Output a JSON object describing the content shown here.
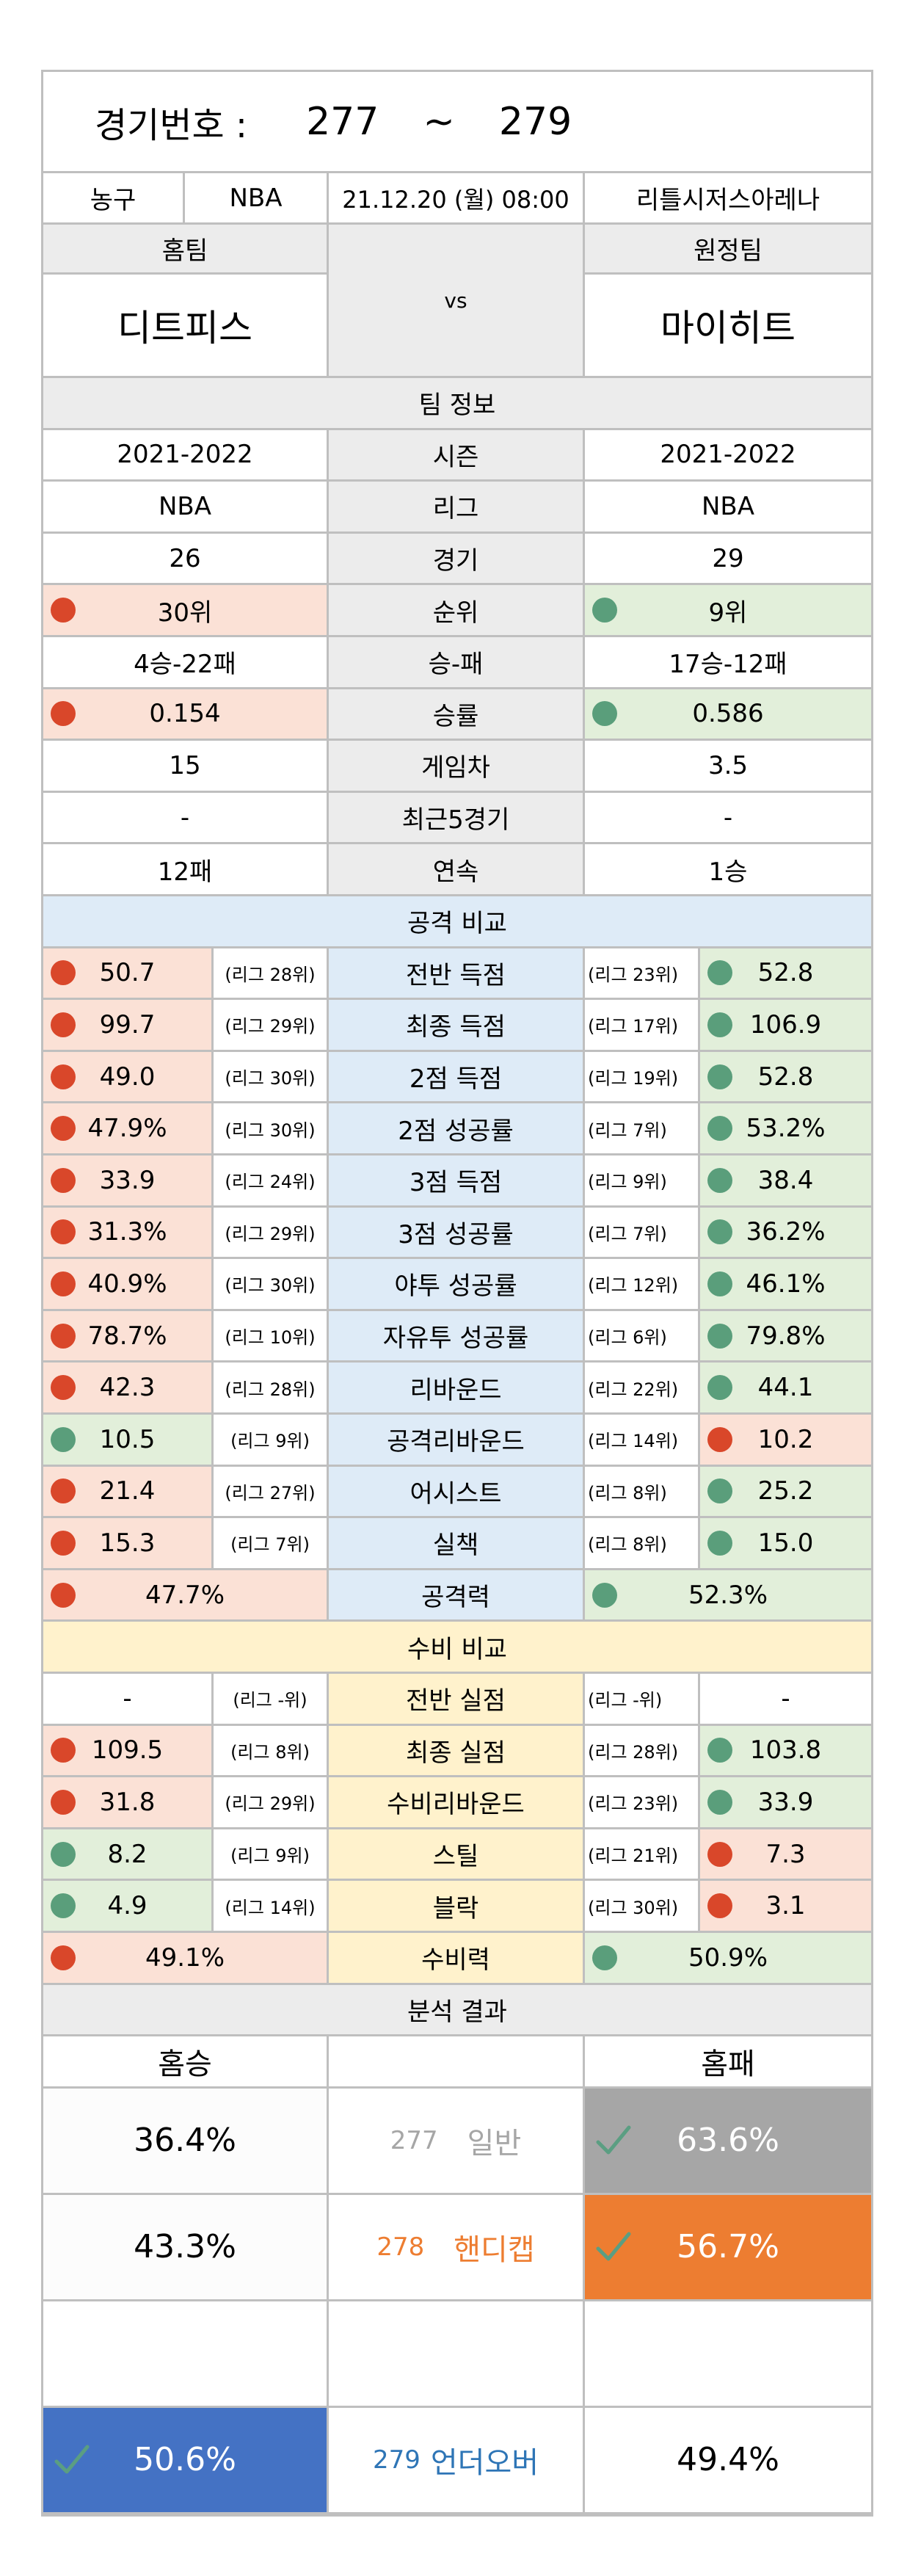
{
  "header": {
    "game_label": "경기번호 :",
    "game_from": "277",
    "tilde": "~",
    "game_to": "279"
  },
  "match": {
    "sport": "농구",
    "league": "NBA",
    "datetime": "21.12.20 (월) 08:00",
    "venue": "리틀시저스아레나"
  },
  "teams": {
    "home_label": "홈팀",
    "away_label": "원정팀",
    "vs": "vs",
    "home": "디트피스",
    "away": "마이히트"
  },
  "team_info": {
    "title": "팀 정보",
    "rows": [
      {
        "label": "시즌",
        "home": "2021-2022",
        "away": "2021-2022"
      },
      {
        "label": "리그",
        "home": "NBA",
        "away": "NBA"
      },
      {
        "label": "경기",
        "home": "26",
        "away": "29"
      },
      {
        "label": "순위",
        "home": "30위",
        "away": "9위",
        "home_mark": "red",
        "away_mark": "green"
      },
      {
        "label": "승-패",
        "home": "4승-22패",
        "away": "17승-12패"
      },
      {
        "label": "승률",
        "home": "0.154",
        "away": "0.586",
        "home_mark": "red",
        "away_mark": "green"
      },
      {
        "label": "게임차",
        "home": "15",
        "away": "3.5"
      },
      {
        "label": "최근5경기",
        "home": "-",
        "away": "-"
      },
      {
        "label": "연속",
        "home": "12패",
        "away": "1승"
      }
    ]
  },
  "attack": {
    "title": "공격 비교",
    "rows": [
      {
        "label": "전반 득점",
        "home": "50.7",
        "home_rank": "(리그 28위)",
        "home_mark": "red",
        "away": "52.8",
        "away_rank": "(리그 23위)",
        "away_mark": "green"
      },
      {
        "label": "최종 득점",
        "home": "99.7",
        "home_rank": "(리그 29위)",
        "home_mark": "red",
        "away": "106.9",
        "away_rank": "(리그 17위)",
        "away_mark": "green"
      },
      {
        "label": "2점 득점",
        "home": "49.0",
        "home_rank": "(리그 30위)",
        "home_mark": "red",
        "away": "52.8",
        "away_rank": "(리그 19위)",
        "away_mark": "green"
      },
      {
        "label": "2점 성공률",
        "home": "47.9%",
        "home_rank": "(리그 30위)",
        "home_mark": "red",
        "away": "53.2%",
        "away_rank": "(리그 7위)",
        "away_mark": "green"
      },
      {
        "label": "3점 득점",
        "home": "33.9",
        "home_rank": "(리그 24위)",
        "home_mark": "red",
        "away": "38.4",
        "away_rank": "(리그 9위)",
        "away_mark": "green"
      },
      {
        "label": "3점 성공률",
        "home": "31.3%",
        "home_rank": "(리그 29위)",
        "home_mark": "red",
        "away": "36.2%",
        "away_rank": "(리그 7위)",
        "away_mark": "green"
      },
      {
        "label": "야투 성공률",
        "home": "40.9%",
        "home_rank": "(리그 30위)",
        "home_mark": "red",
        "away": "46.1%",
        "away_rank": "(리그 12위)",
        "away_mark": "green"
      },
      {
        "label": "자유투 성공률",
        "home": "78.7%",
        "home_rank": "(리그 10위)",
        "home_mark": "red",
        "away": "79.8%",
        "away_rank": "(리그 6위)",
        "away_mark": "green"
      },
      {
        "label": "리바운드",
        "home": "42.3",
        "home_rank": "(리그 28위)",
        "home_mark": "red",
        "away": "44.1",
        "away_rank": "(리그 22위)",
        "away_mark": "green"
      },
      {
        "label": "공격리바운드",
        "home": "10.5",
        "home_rank": "(리그 9위)",
        "home_mark": "green",
        "away": "10.2",
        "away_rank": "(리그 14위)",
        "away_mark": "red"
      },
      {
        "label": "어시스트",
        "home": "21.4",
        "home_rank": "(리그 27위)",
        "home_mark": "red",
        "away": "25.2",
        "away_rank": "(리그 8위)",
        "away_mark": "green"
      },
      {
        "label": "실책",
        "home": "15.3",
        "home_rank": "(리그 7위)",
        "home_mark": "red",
        "away": "15.0",
        "away_rank": "(리그 8위)",
        "away_mark": "green"
      }
    ],
    "summary": {
      "label": "공격력",
      "home": "47.7%",
      "home_mark": "red",
      "away": "52.3%",
      "away_mark": "green"
    }
  },
  "defense": {
    "title": "수비 비교",
    "rows": [
      {
        "label": "전반 실점",
        "home": "-",
        "home_rank": "(리그 -위)",
        "home_mark": "none",
        "away": "-",
        "away_rank": "(리그 -위)",
        "away_mark": "none"
      },
      {
        "label": "최종 실점",
        "home": "109.5",
        "home_rank": "(리그 8위)",
        "home_mark": "red",
        "away": "103.8",
        "away_rank": "(리그 28위)",
        "away_mark": "green"
      },
      {
        "label": "수비리바운드",
        "home": "31.8",
        "home_rank": "(리그 29위)",
        "home_mark": "red",
        "away": "33.9",
        "away_rank": "(리그 23위)",
        "away_mark": "green"
      },
      {
        "label": "스틸",
        "home": "8.2",
        "home_rank": "(리그 9위)",
        "home_mark": "green",
        "away": "7.3",
        "away_rank": "(리그 21위)",
        "away_mark": "red"
      },
      {
        "label": "블락",
        "home": "4.9",
        "home_rank": "(리그 14위)",
        "home_mark": "green",
        "away": "3.1",
        "away_rank": "(리그 30위)",
        "away_mark": "red"
      }
    ],
    "summary": {
      "label": "수비력",
      "home": "49.1%",
      "home_mark": "red",
      "away": "50.9%",
      "away_mark": "green"
    }
  },
  "analysis": {
    "title": "분석 결과",
    "home_head": "홈승",
    "away_head": "홈패",
    "rows": [
      {
        "num": "277",
        "type": "일반",
        "home": "36.4%",
        "away": "63.6%",
        "pick": "away",
        "color": "#a6a6a6"
      },
      {
        "num": "278",
        "type": "핸디캡",
        "home": "43.3%",
        "away": "56.7%",
        "pick": "away",
        "color": "#ed7d31"
      },
      {
        "num": "",
        "type": "",
        "home": "",
        "away": "",
        "pick": "none",
        "color": ""
      },
      {
        "num": "279",
        "type": "언더오버",
        "home": "50.6%",
        "away": "49.4%",
        "pick": "home",
        "color": "#4472c4"
      }
    ]
  },
  "colors": {
    "red_mark": "#d9472a",
    "green_mark": "#5a9e7b",
    "red_bg": "#fbe1d6",
    "green_bg": "#e2efda",
    "attack_bg": "#deebf7",
    "defense_bg": "#fff2cc",
    "header_gray": "#ececec",
    "pick_text_link": "#2e75b6"
  }
}
